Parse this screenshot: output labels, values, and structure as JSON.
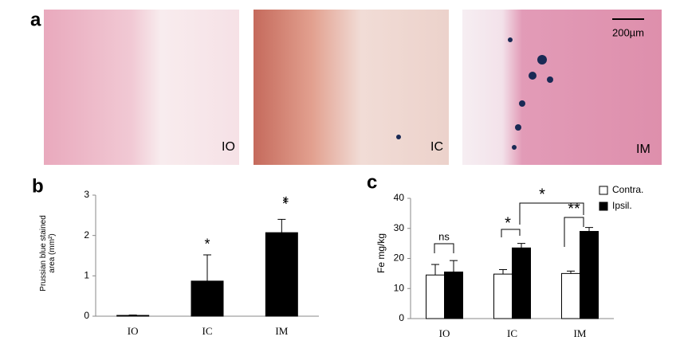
{
  "figure": {
    "panel_a": {
      "label": "a",
      "images": [
        {
          "label": "IO"
        },
        {
          "label": "IC"
        },
        {
          "label": "IM"
        }
      ],
      "scale_bar": "200µm"
    }
  },
  "chart_data": [
    {
      "type": "bar",
      "panel": "b",
      "y_label": "Prussian blue stained area (mm²)",
      "categories": [
        "IO",
        "IC",
        "IM"
      ],
      "values": [
        0.02,
        0.87,
        2.07
      ],
      "errors": [
        0.01,
        0.65,
        0.33
      ],
      "color": "#000000",
      "ylim": [
        0,
        3
      ],
      "yticks": [
        0,
        1,
        2,
        3
      ],
      "annotations": [
        "*",
        "**"
      ]
    },
    {
      "type": "bar",
      "panel": "c",
      "y_label": "Fe mg/kg",
      "categories": [
        "IO",
        "IC",
        "IM"
      ],
      "series": [
        {
          "name": "Contra.",
          "color": "#ffffff",
          "values": [
            14.5,
            14.8,
            15.0
          ],
          "errors": [
            3.5,
            1.5,
            0.8
          ]
        },
        {
          "name": "Ipsil.",
          "color": "#000000",
          "values": [
            15.5,
            23.5,
            29.0
          ],
          "errors": [
            3.8,
            1.5,
            1.3
          ]
        }
      ],
      "ylim": [
        0,
        40
      ],
      "yticks": [
        0,
        10,
        20,
        30,
        40
      ],
      "legend": "top-right",
      "annotations": [
        "ns",
        "*",
        "**",
        "*"
      ]
    }
  ]
}
